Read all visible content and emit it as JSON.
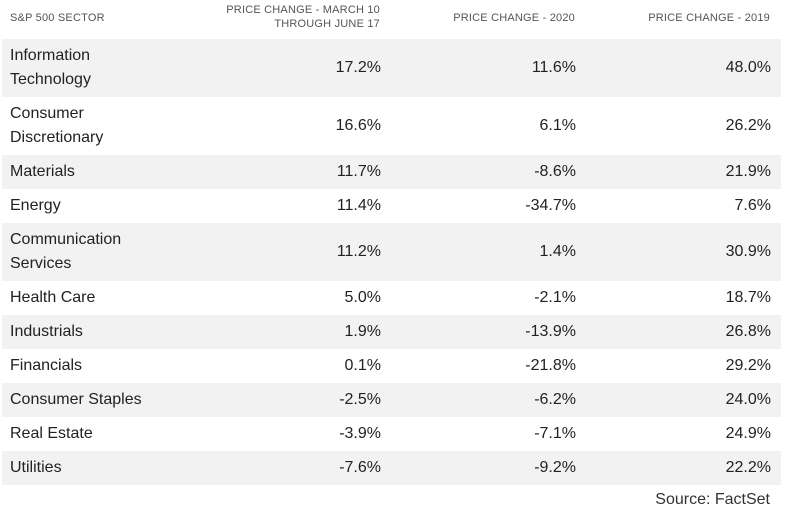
{
  "headers": {
    "sector": "S&P 500 SECTOR",
    "march_to_june_line1": "PRICE CHANGE - MARCH 10",
    "march_to_june_line2": "THROUGH JUNE 17",
    "y2020": "PRICE CHANGE - 2020",
    "y2019": "PRICE CHANGE - 2019"
  },
  "rows": [
    {
      "sector_line1": "Information",
      "sector_line2": "Technology",
      "march_june": "17.2%",
      "y2020": "11.6%",
      "y2019": "48.0%"
    },
    {
      "sector_line1": "Consumer",
      "sector_line2": "Discretionary",
      "march_june": "16.6%",
      "y2020": "6.1%",
      "y2019": "26.2%"
    },
    {
      "sector_line1": "Materials",
      "sector_line2": "",
      "march_june": "11.7%",
      "y2020": "-8.6%",
      "y2019": "21.9%"
    },
    {
      "sector_line1": "Energy",
      "sector_line2": "",
      "march_june": "11.4%",
      "y2020": "-34.7%",
      "y2019": "7.6%"
    },
    {
      "sector_line1": "Communication",
      "sector_line2": "Services",
      "march_june": "11.2%",
      "y2020": "1.4%",
      "y2019": "30.9%"
    },
    {
      "sector_line1": "Health Care",
      "sector_line2": "",
      "march_june": "5.0%",
      "y2020": "-2.1%",
      "y2019": "18.7%"
    },
    {
      "sector_line1": "Industrials",
      "sector_line2": "",
      "march_june": "1.9%",
      "y2020": "-13.9%",
      "y2019": "26.8%"
    },
    {
      "sector_line1": "Financials",
      "sector_line2": "",
      "march_june": "0.1%",
      "y2020": "-21.8%",
      "y2019": "29.2%"
    },
    {
      "sector_line1": "Consumer Staples",
      "sector_line2": "",
      "march_june": "-2.5%",
      "y2020": "-6.2%",
      "y2019": "24.0%"
    },
    {
      "sector_line1": "Real Estate",
      "sector_line2": "",
      "march_june": "-3.9%",
      "y2020": "-7.1%",
      "y2019": "24.9%"
    },
    {
      "sector_line1": "Utilities",
      "sector_line2": "",
      "march_june": "-7.6%",
      "y2020": "-9.2%",
      "y2019": "22.2%"
    }
  ],
  "source": "Source: FactSet"
}
